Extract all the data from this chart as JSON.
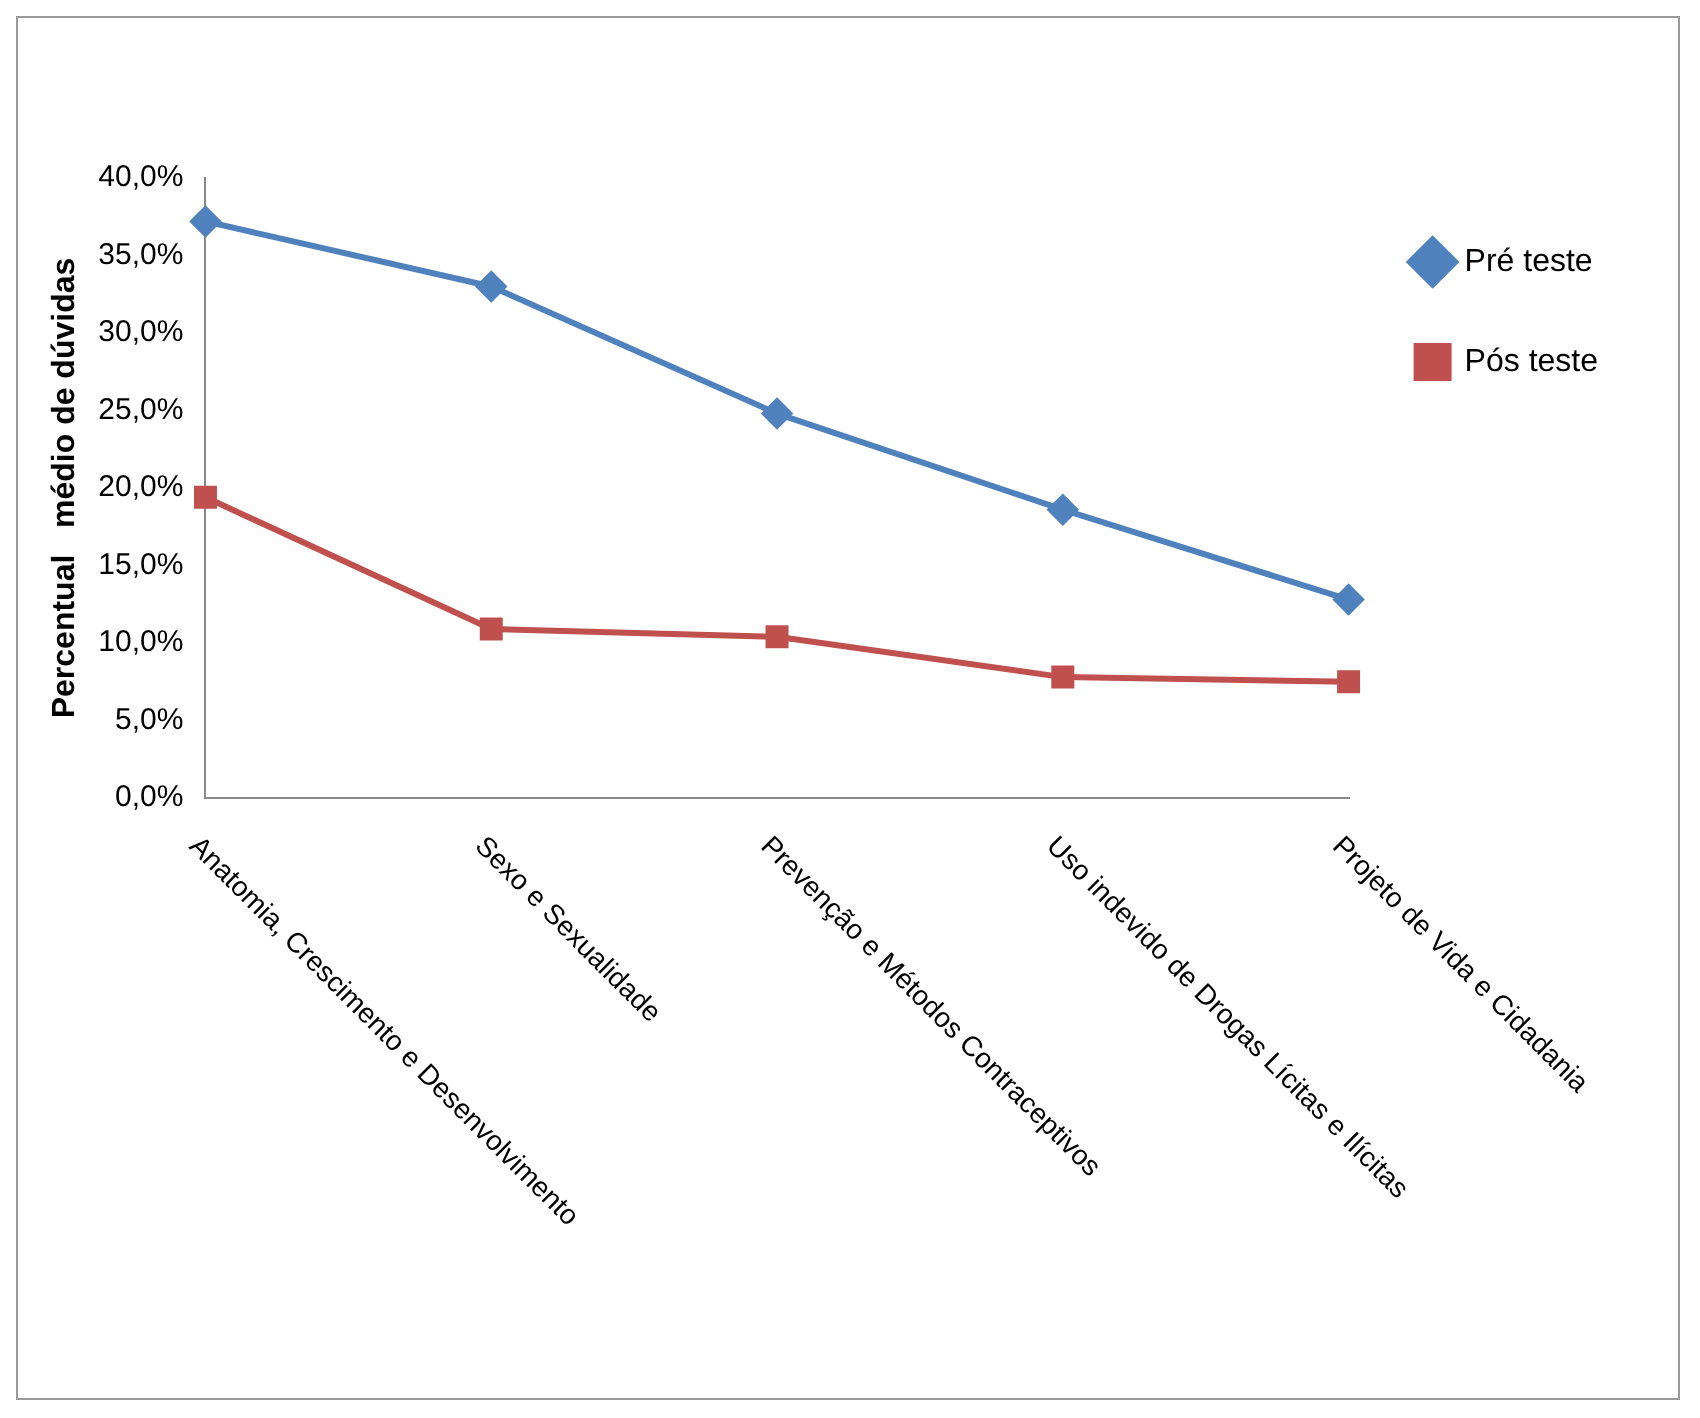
{
  "chart_data": {
    "type": "line",
    "ylabel": "Percentual   médio de dúvidas",
    "categories": [
      "Anatomia, Crescimento e Desenvolvimento",
      "Sexo e Sexualidade",
      "Prevenção e Métodos Contraceptivos",
      "Uso indevido de Drogas Lícitas e Ilícitas",
      "Projeto de Vida e Cidadania"
    ],
    "series": [
      {
        "name": "Pré teste",
        "color": "#4f81bd",
        "marker": "diamond",
        "values": [
          37.2,
          33.0,
          24.8,
          18.6,
          12.8
        ]
      },
      {
        "name": "Pós teste",
        "color": "#c0504d",
        "marker": "square",
        "values": [
          19.4,
          10.9,
          10.4,
          7.8,
          7.5
        ]
      }
    ],
    "ylim": [
      0,
      40
    ],
    "yticks": [
      {
        "value": 0,
        "label": "0,0%"
      },
      {
        "value": 5,
        "label": "5,0%"
      },
      {
        "value": 10,
        "label": "10,0%"
      },
      {
        "value": 15,
        "label": "15,0%"
      },
      {
        "value": 20,
        "label": "20,0%"
      },
      {
        "value": 25,
        "label": "25,0%"
      },
      {
        "value": 30,
        "label": "30,0%"
      },
      {
        "value": 35,
        "label": "35,0%"
      },
      {
        "value": 40,
        "label": "40,0%"
      }
    ],
    "grid": false,
    "legend": "top right"
  }
}
